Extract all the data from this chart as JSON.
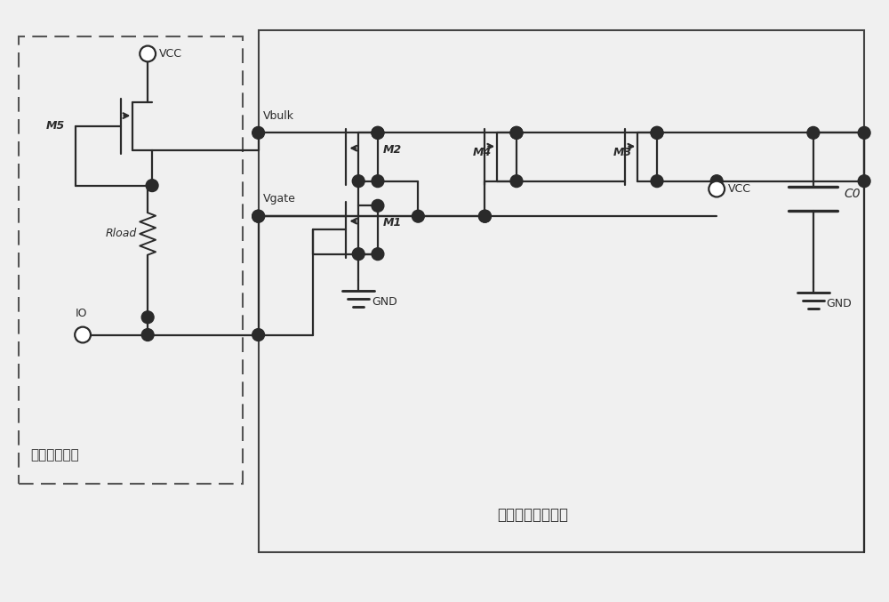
{
  "bg_color": "#f0f0f0",
  "line_color": "#2a2a2a",
  "label_pullup": "上拉电阵模块",
  "label_control": "控制信号产生模块",
  "labels": {
    "VCC1": "VCC",
    "VCC2": "VCC",
    "M5": "M5",
    "Rload": "Rload",
    "IO": "IO",
    "Vbulk": "Vbulk",
    "Vgate": "Vgate",
    "M4": "M4",
    "M3": "M3",
    "M2": "M2",
    "M1": "M1",
    "C0": "C0",
    "GND1": "GND",
    "GND2": "GND"
  }
}
